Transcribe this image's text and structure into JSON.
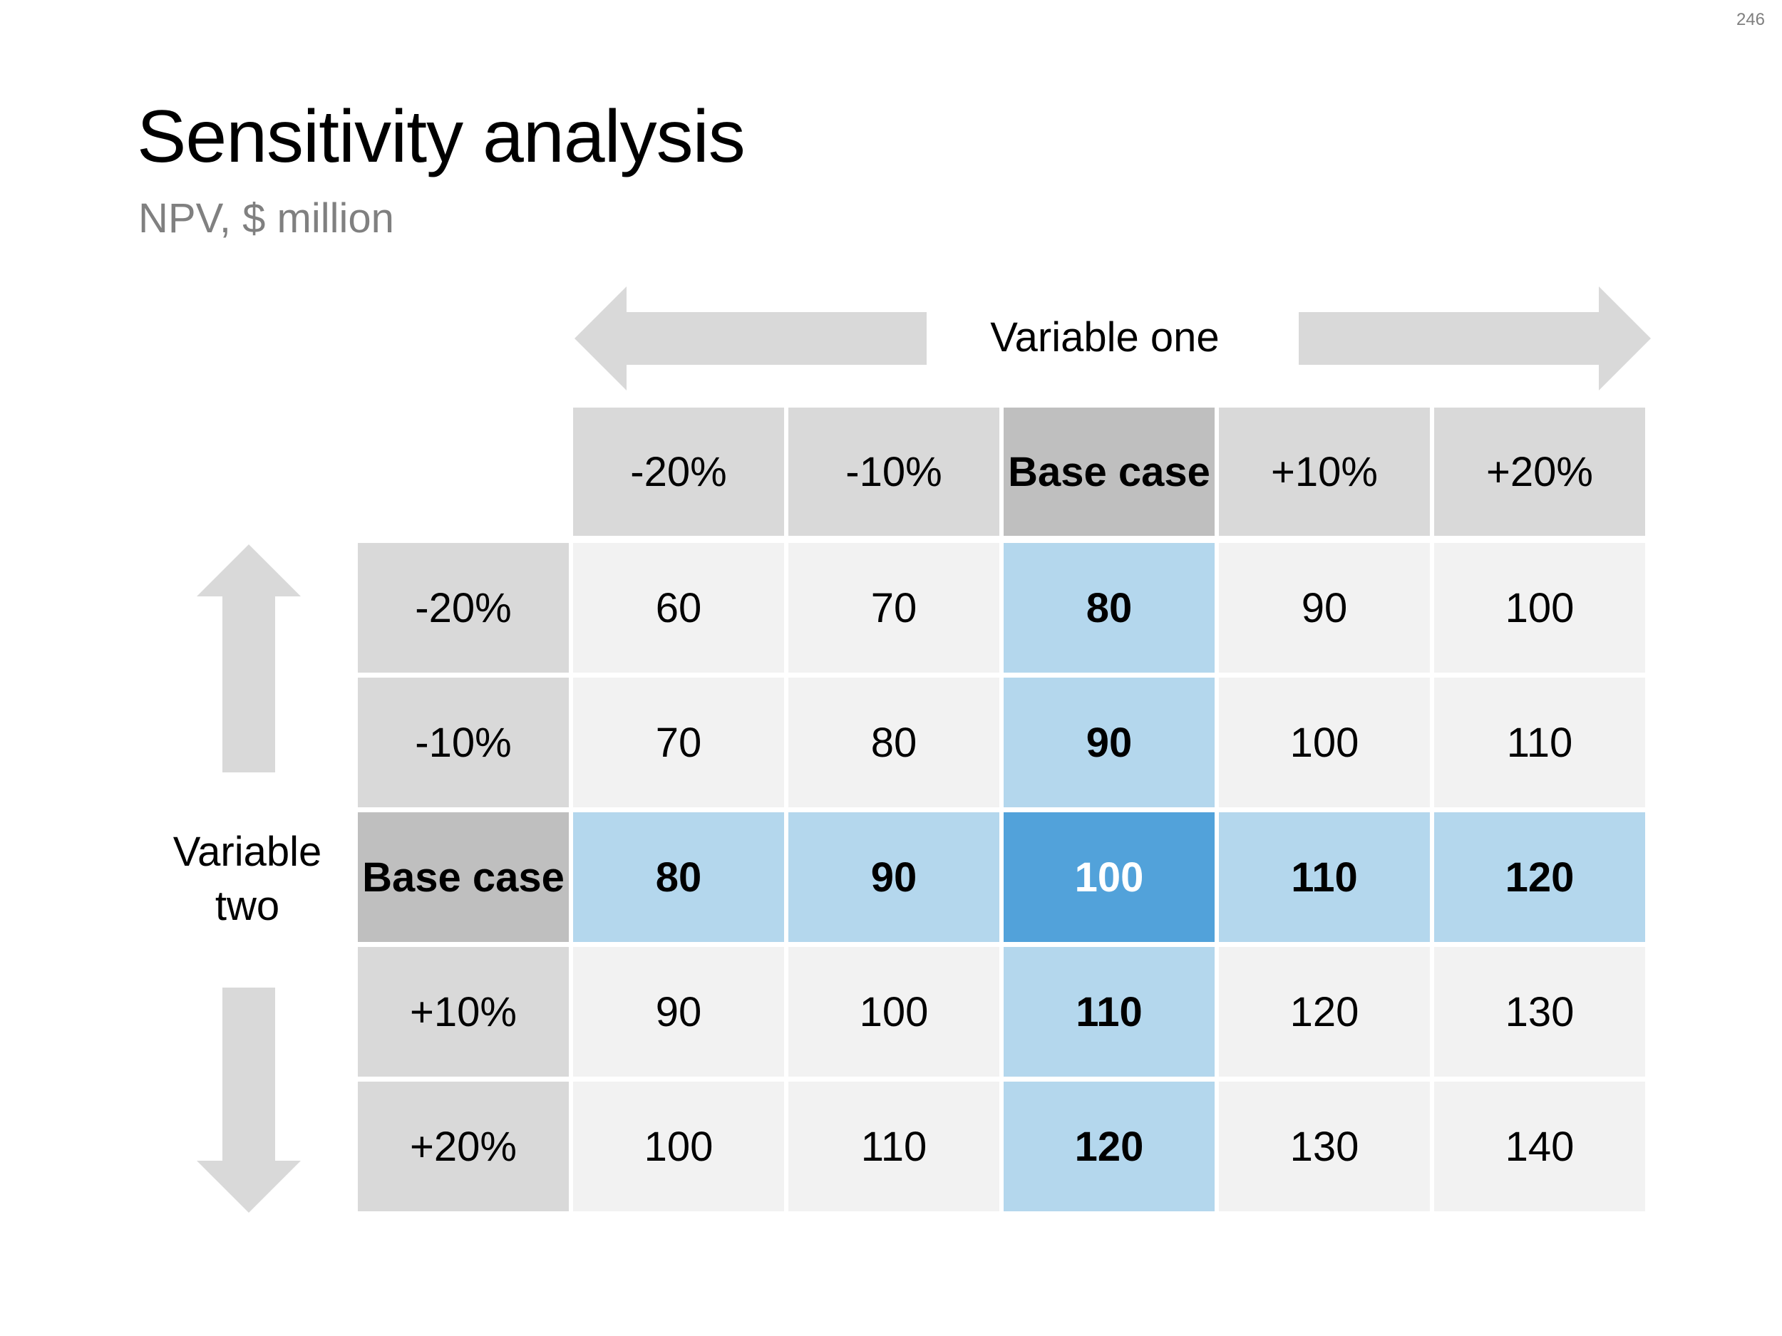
{
  "page_number": "246",
  "title": "Sensitivity analysis",
  "subtitle": "NPV, $ million",
  "variable_one_label": "Variable one",
  "variable_two_label_lines": [
    "Variable",
    "two"
  ],
  "colors": {
    "header": "#d9d9d9",
    "header_base": "#bfbfbf",
    "cell": "#f2f2f2",
    "cell_base": "#b4d7ed",
    "cell_center": "#52a2da",
    "arrow": "#d9d9d9"
  },
  "chart_data": {
    "type": "table",
    "title": "Sensitivity analysis",
    "subtitle": "NPV, $ million",
    "column_axis_label": "Variable one",
    "row_axis_label": "Variable two",
    "column_headers": [
      "-20%",
      "-10%",
      "Base case",
      "+10%",
      "+20%"
    ],
    "row_headers": [
      "-20%",
      "-10%",
      "Base case",
      "+10%",
      "+20%"
    ],
    "base_case_index": 2,
    "values": [
      [
        60,
        70,
        80,
        90,
        100
      ],
      [
        70,
        80,
        90,
        100,
        110
      ],
      [
        80,
        90,
        100,
        110,
        120
      ],
      [
        90,
        100,
        110,
        120,
        130
      ],
      [
        100,
        110,
        120,
        130,
        140
      ]
    ]
  }
}
